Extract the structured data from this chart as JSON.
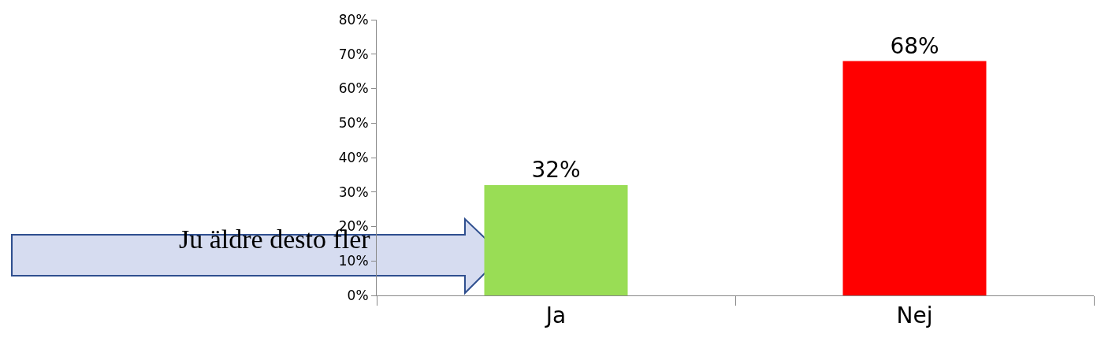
{
  "chart_data": {
    "type": "bar",
    "categories": [
      "Ja",
      "Nej"
    ],
    "values": [
      32,
      68
    ],
    "colors": [
      "#99dd55",
      "#ff0000"
    ],
    "value_labels": [
      "32%",
      "68%"
    ],
    "ylim": [
      0,
      80
    ],
    "yticks": [
      {
        "value": 0,
        "label": "0%"
      },
      {
        "value": 10,
        "label": "10%"
      },
      {
        "value": 20,
        "label": "20%"
      },
      {
        "value": 30,
        "label": "30%"
      },
      {
        "value": 40,
        "label": "40%"
      },
      {
        "value": 50,
        "label": "50%"
      },
      {
        "value": 60,
        "label": "60%"
      },
      {
        "value": 70,
        "label": "70%"
      },
      {
        "value": 80,
        "label": "80%"
      }
    ],
    "annotations": [
      "Ju äldre desto fler"
    ]
  }
}
